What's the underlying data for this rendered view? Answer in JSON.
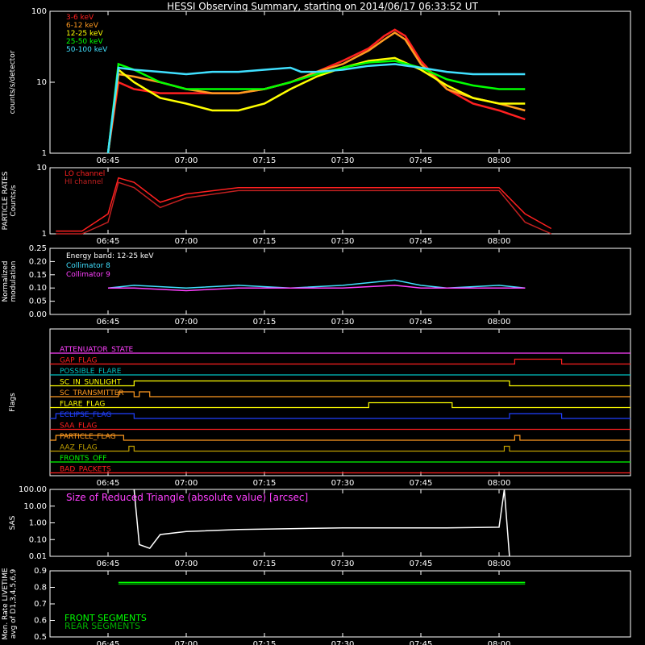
{
  "title": "HESSI Observing Summary, starting on 2014/06/17 06:33:52 UT",
  "time_ticks": [
    "06:45",
    "07:00",
    "07:15",
    "07:30",
    "07:45",
    "08:00"
  ],
  "colors": {
    "bg": "#000000",
    "axes": "#ffffff",
    "red": "#ff2020",
    "orange": "#ff9a20",
    "yellow": "#ffff00",
    "green": "#00ff00",
    "cyan": "#40e0ff",
    "magenta": "#ff40ff",
    "blue": "#2040ff",
    "teal": "#00c0c0",
    "olive": "#c0a000",
    "darkred": "#c02020"
  },
  "chart_data": [
    {
      "type": "line",
      "panel": "count-rates",
      "ylabel": "counts/s/detector",
      "yscale": "log",
      "ylim": [
        1,
        100
      ],
      "ytick_labels": [
        "1",
        "10",
        "100"
      ],
      "legend_position": "top-left",
      "series": [
        {
          "name": "3-6 keV",
          "color": "#ff2020",
          "x": [
            "06:45",
            "06:47",
            "06:50",
            "06:55",
            "07:00",
            "07:05",
            "07:10",
            "07:15",
            "07:20",
            "07:25",
            "07:30",
            "07:35",
            "07:38",
            "07:40",
            "07:42",
            "07:45",
            "07:50",
            "07:55",
            "08:00",
            "08:05"
          ],
          "y": [
            1,
            10,
            8,
            7,
            7,
            7,
            7,
            8,
            10,
            14,
            20,
            30,
            45,
            55,
            45,
            20,
            8,
            5,
            4,
            3
          ]
        },
        {
          "name": "6-12 keV",
          "color": "#ff9a20",
          "x": [
            "06:45",
            "06:47",
            "06:50",
            "06:55",
            "07:00",
            "07:05",
            "07:10",
            "07:15",
            "07:20",
            "07:25",
            "07:30",
            "07:35",
            "07:38",
            "07:40",
            "07:42",
            "07:45",
            "07:50",
            "07:55",
            "08:00",
            "08:05"
          ],
          "y": [
            1,
            13,
            12,
            10,
            8,
            7,
            7,
            8,
            10,
            14,
            18,
            28,
            40,
            50,
            40,
            18,
            8,
            6,
            5,
            4
          ]
        },
        {
          "name": "12-25 keV",
          "color": "#ffff00",
          "x": [
            "06:45",
            "06:47",
            "06:50",
            "06:55",
            "07:00",
            "07:05",
            "07:10",
            "07:15",
            "07:20",
            "07:25",
            "07:30",
            "07:35",
            "07:40",
            "07:45",
            "07:50",
            "07:55",
            "08:00",
            "08:05"
          ],
          "y": [
            1,
            15,
            10,
            6,
            5,
            4,
            4,
            5,
            8,
            12,
            16,
            20,
            22,
            15,
            9,
            6,
            5,
            5
          ]
        },
        {
          "name": "25-50 keV",
          "color": "#00ff00",
          "x": [
            "06:45",
            "06:47",
            "06:50",
            "06:55",
            "07:00",
            "07:05",
            "07:10",
            "07:15",
            "07:20",
            "07:25",
            "07:30",
            "07:35",
            "07:40",
            "07:45",
            "07:50",
            "07:55",
            "08:00",
            "08:05"
          ],
          "y": [
            1,
            18,
            15,
            10,
            8,
            8,
            8,
            8,
            10,
            13,
            16,
            19,
            20,
            16,
            11,
            9,
            8,
            8
          ]
        },
        {
          "name": "50-100 keV",
          "color": "#40e0ff",
          "x": [
            "06:45",
            "06:47",
            "06:50",
            "06:55",
            "07:00",
            "07:05",
            "07:10",
            "07:15",
            "07:20",
            "07:22",
            "07:25",
            "07:30",
            "07:35",
            "07:40",
            "07:45",
            "07:50",
            "07:55",
            "08:00",
            "08:05"
          ],
          "y": [
            1,
            16,
            15,
            14,
            13,
            14,
            14,
            15,
            16,
            14,
            14,
            15,
            17,
            18,
            16,
            14,
            13,
            13,
            13
          ]
        }
      ]
    },
    {
      "type": "line",
      "panel": "particle-rates",
      "ylabel": [
        "PARTICLE RATES",
        "Counts/s"
      ],
      "yscale": "log",
      "ylim": [
        1,
        10
      ],
      "ytick_labels": [
        "1",
        "10"
      ],
      "series": [
        {
          "name": "LO channel",
          "color": "#ff2020",
          "x": [
            "06:35",
            "06:40",
            "06:45",
            "06:47",
            "06:50",
            "06:55",
            "07:00",
            "07:10",
            "07:20",
            "07:30",
            "07:40",
            "07:50",
            "08:00",
            "08:05",
            "08:10"
          ],
          "y": [
            1.1,
            1.1,
            2,
            7,
            6,
            3,
            4,
            5,
            5,
            5,
            5,
            5,
            5,
            2,
            1.2
          ]
        },
        {
          "name": "HI channel",
          "color": "#c02020",
          "x": [
            "06:35",
            "06:40",
            "06:45",
            "06:47",
            "06:50",
            "06:55",
            "07:00",
            "07:10",
            "07:20",
            "07:30",
            "07:40",
            "07:50",
            "08:00",
            "08:05",
            "08:10"
          ],
          "y": [
            1,
            1,
            1.5,
            6,
            5,
            2.5,
            3.5,
            4.5,
            4.5,
            4.5,
            4.5,
            4.5,
            4.5,
            1.5,
            1
          ]
        }
      ]
    },
    {
      "type": "line",
      "panel": "modulation",
      "ylabel": [
        "Normalized",
        "modulation"
      ],
      "ylim": [
        0,
        0.25
      ],
      "ytick_labels": [
        "0.00",
        "0.05",
        "0.10",
        "0.15",
        "0.20",
        "0.25"
      ],
      "annotation": "Energy band: 12-25 keV",
      "series": [
        {
          "name": "Collimator 8",
          "color": "#40e0ff",
          "x": [
            "06:45",
            "06:50",
            "07:00",
            "07:10",
            "07:20",
            "07:30",
            "07:40",
            "07:45",
            "07:50",
            "08:00",
            "08:05"
          ],
          "y": [
            0.1,
            0.11,
            0.1,
            0.11,
            0.1,
            0.11,
            0.13,
            0.11,
            0.1,
            0.11,
            0.1
          ]
        },
        {
          "name": "Collimator 9",
          "color": "#ff40ff",
          "x": [
            "06:45",
            "06:50",
            "07:00",
            "07:10",
            "07:20",
            "07:30",
            "07:40",
            "07:45",
            "07:50",
            "08:00",
            "08:05"
          ],
          "y": [
            0.1,
            0.1,
            0.09,
            0.1,
            0.1,
            0.1,
            0.11,
            0.1,
            0.1,
            0.1,
            0.1
          ]
        }
      ]
    },
    {
      "type": "line",
      "panel": "flags",
      "ylabel": "Flags",
      "flags": [
        {
          "label": "ATTENUATOR_STATE",
          "color": "#ff40ff",
          "on": []
        },
        {
          "label": "GAP_FLAG",
          "color": "#ff2020",
          "on": [
            [
              "08:03",
              "08:12"
            ]
          ]
        },
        {
          "label": "POSSIBLE_FLARE",
          "color": "#00c0c0",
          "on": []
        },
        {
          "label": "SC_IN_SUNLIGHT",
          "color": "#ffff00",
          "on": [
            [
              "06:50",
              "08:02"
            ]
          ]
        },
        {
          "label": "SC_TRANSMITTER",
          "color": "#ff9a20",
          "on": [
            [
              "06:47",
              "06:50"
            ],
            [
              "06:51",
              "06:53"
            ]
          ]
        },
        {
          "label": "FLARE_FLAG",
          "color": "#ffff00",
          "on": [
            [
              "07:35",
              "07:51"
            ]
          ]
        },
        {
          "label": "ECLIPSE_FLAG",
          "color": "#2040ff",
          "on": [
            [
              "06:35",
              "06:50"
            ],
            [
              "08:02",
              "08:12"
            ]
          ]
        },
        {
          "label": "SAA_FLAG",
          "color": "#ff2020",
          "on": []
        },
        {
          "label": "PARTICLE_FLAG",
          "color": "#ff9a20",
          "on": [
            [
              "06:35",
              "06:48"
            ],
            [
              "08:03",
              "08:04"
            ]
          ]
        },
        {
          "label": "AAZ_FLAG",
          "color": "#c0a000",
          "on": [
            [
              "06:49",
              "06:50"
            ],
            [
              "08:01",
              "08:02"
            ]
          ]
        },
        {
          "label": "FRONTS_OFF",
          "color": "#00ff00",
          "on": []
        },
        {
          "label": "BAD_PACKETS",
          "color": "#ff2020",
          "on": []
        }
      ]
    },
    {
      "type": "line",
      "panel": "sas",
      "ylabel": "SAS",
      "yscale": "log",
      "ylim": [
        0.01,
        100
      ],
      "ytick_labels": [
        "0.01",
        "0.10",
        "1.00",
        "10.00",
        "100.00"
      ],
      "annotation": "Size of Reduced Triangle (absolute value) [arcsec]",
      "annotation_color": "#ff40ff",
      "series": [
        {
          "name": "",
          "color": "#ffffff",
          "x": [
            "06:50",
            "06:51",
            "06:53",
            "06:55",
            "07:00",
            "07:10",
            "07:20",
            "07:30",
            "07:40",
            "07:50",
            "08:00",
            "08:01",
            "08:02"
          ],
          "y": [
            100,
            0.05,
            0.03,
            0.2,
            0.3,
            0.4,
            0.45,
            0.5,
            0.5,
            0.5,
            0.55,
            100,
            0.01
          ]
        }
      ]
    },
    {
      "type": "line",
      "panel": "livetime",
      "ylabel": [
        "Mon. Rate LIVETIME",
        "avg of D1,3,4,5,6,9"
      ],
      "ylim": [
        0.5,
        0.9
      ],
      "ytick_labels": [
        "0.5",
        "0.6",
        "0.7",
        "0.8",
        "0.9"
      ],
      "series": [
        {
          "name": "FRONT SEGMENTS",
          "color": "#00ff00",
          "x": [
            "06:47",
            "07:00",
            "07:15",
            "07:30",
            "07:45",
            "08:00",
            "08:05"
          ],
          "y": [
            0.83,
            0.83,
            0.83,
            0.83,
            0.83,
            0.83,
            0.83
          ]
        },
        {
          "name": "REAR SEGMENTS",
          "color": "#00b000",
          "x": [
            "06:47",
            "07:00",
            "07:15",
            "07:30",
            "07:45",
            "08:00",
            "08:05"
          ],
          "y": [
            0.82,
            0.82,
            0.82,
            0.82,
            0.82,
            0.82,
            0.82
          ]
        }
      ]
    }
  ]
}
